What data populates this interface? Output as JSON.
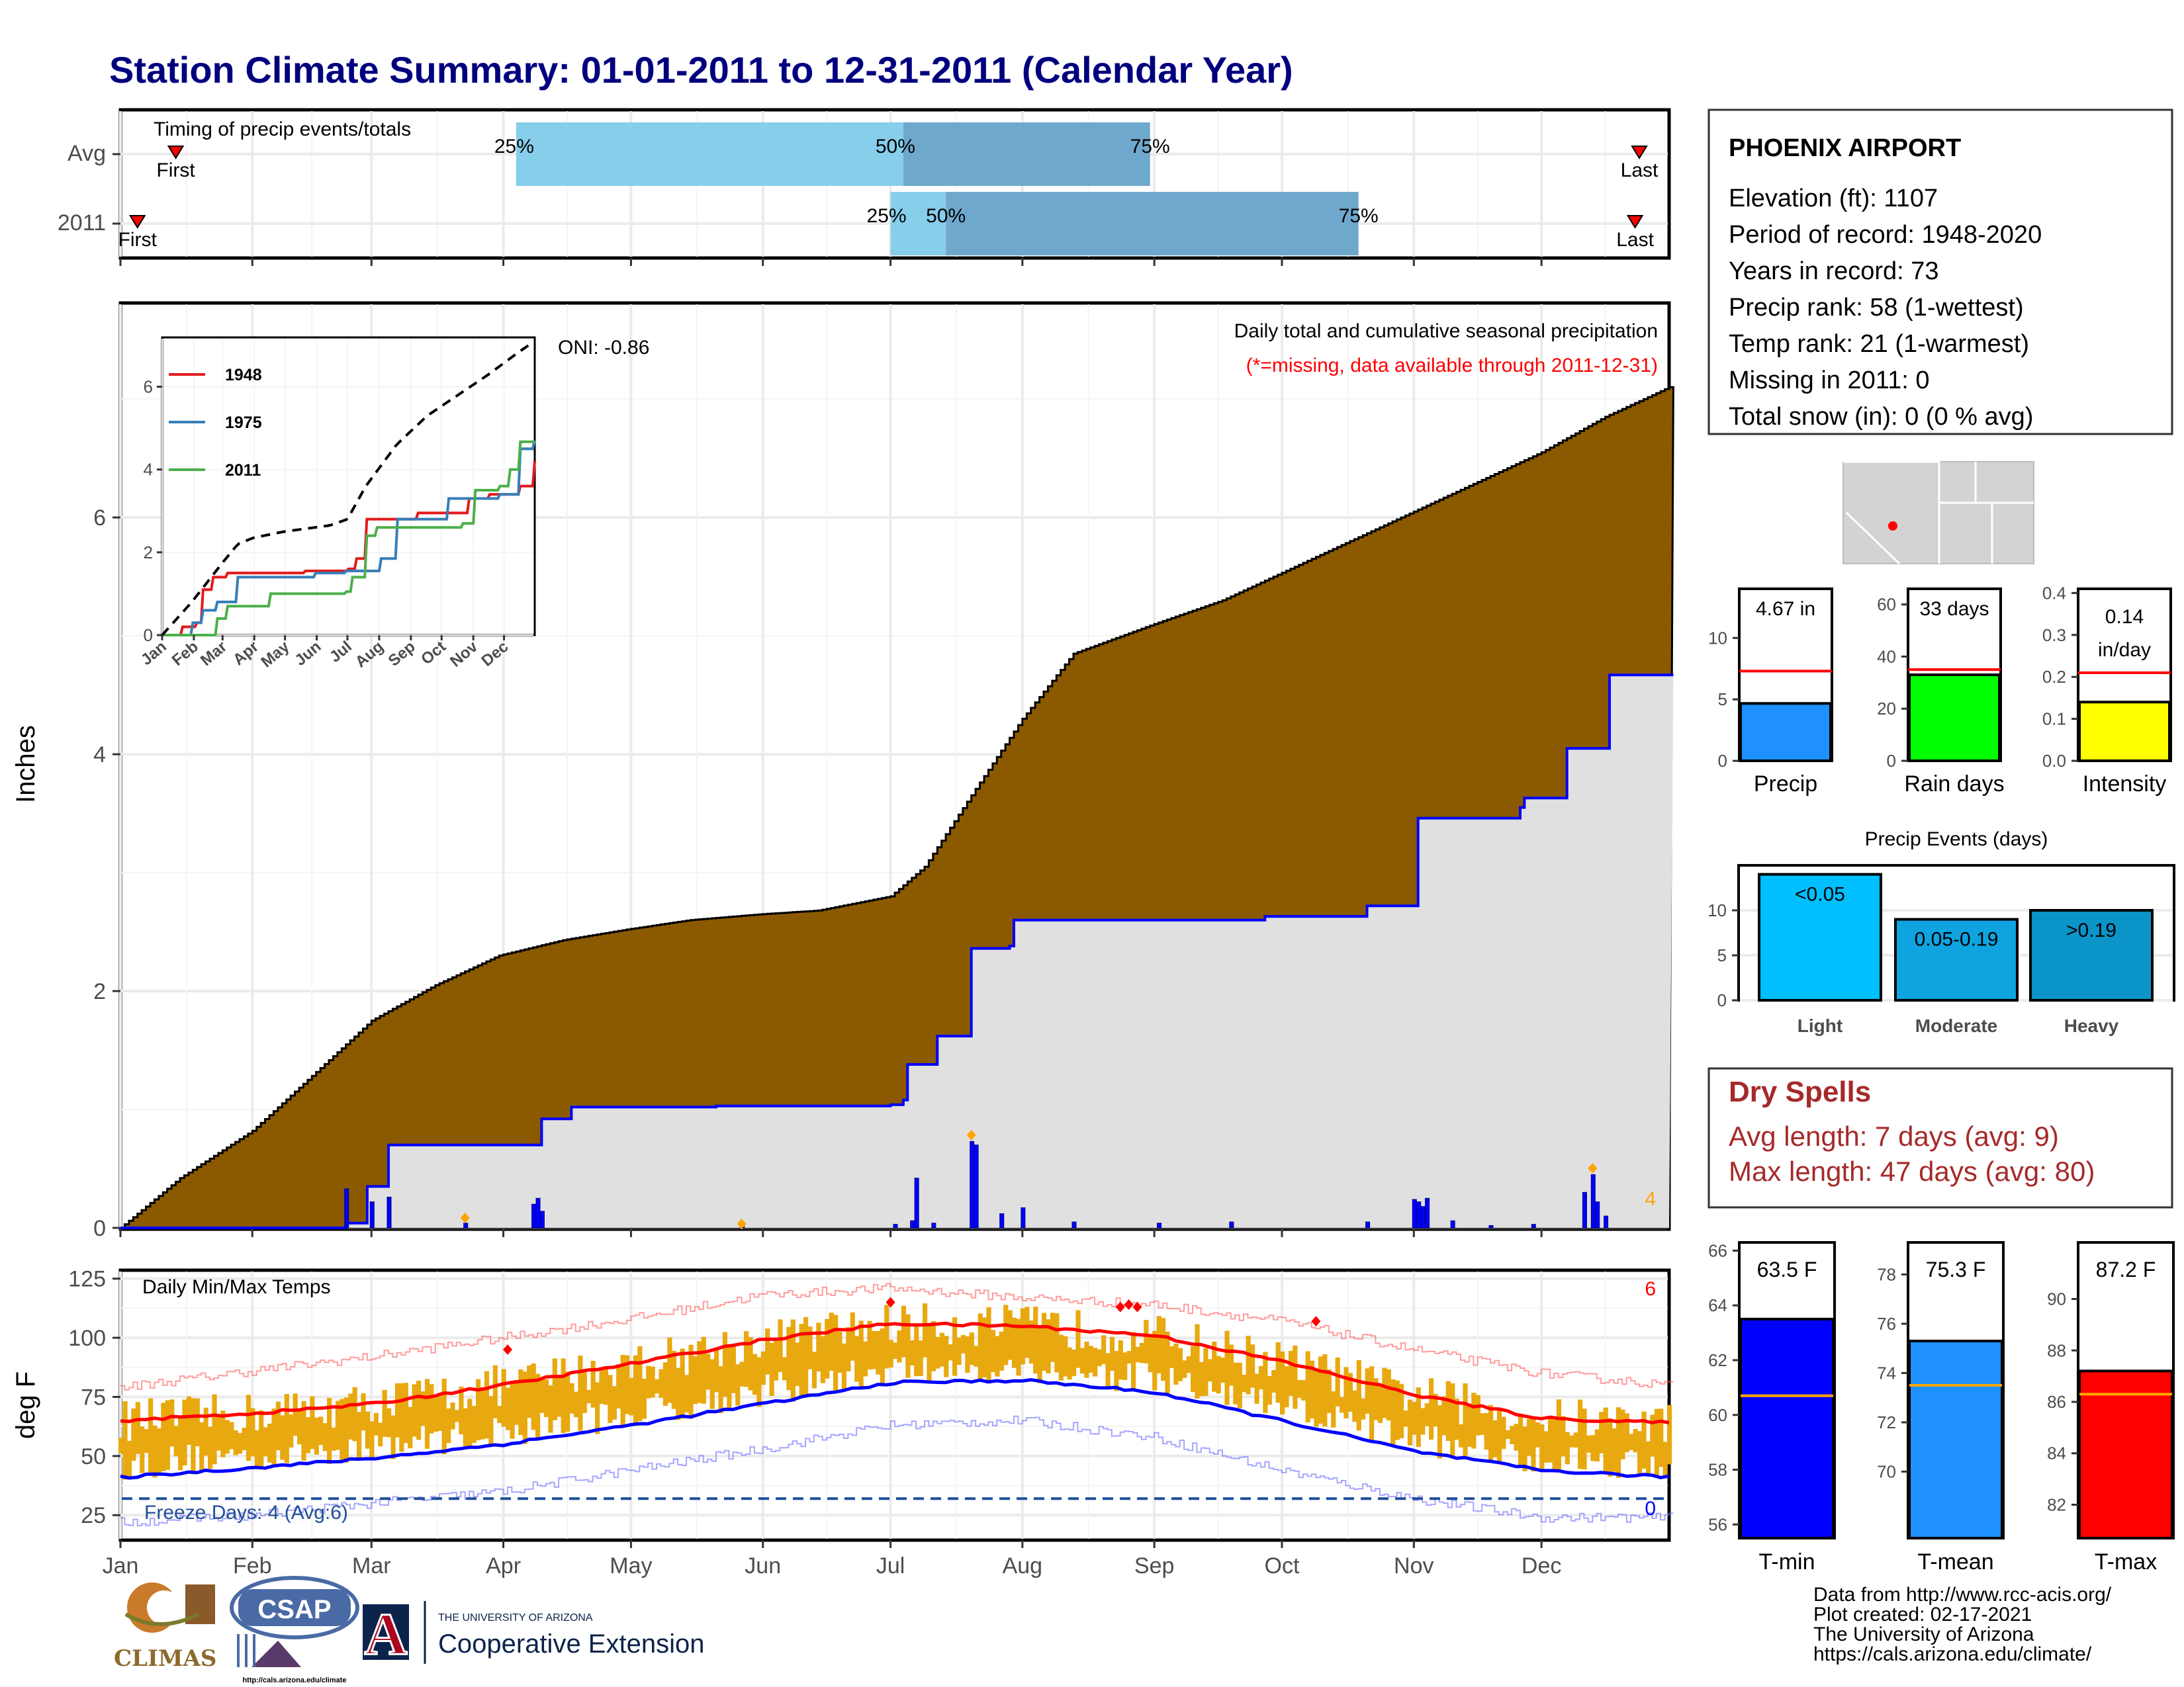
{
  "title": "Station Climate Summary: 01-01-2011 to 12-31-2011 (Calendar Year)",
  "colors": {
    "title": "#00007f",
    "cumulative_avg": "#8b5a00",
    "cumulative_2011": "#e0e0e0",
    "line_2011": "#0000ff",
    "daily_bar": "#0000ff",
    "temp_range": "#e8a80f",
    "avg_max": "#ff0000",
    "avg_min": "#0000ff",
    "dry_spells": "#a52a2a",
    "pct_light": "#87ceeb",
    "pct_mid": "#6fa8cd"
  },
  "timing_panel": {
    "heading": "Timing of precip events/totals",
    "rows": [
      "Avg",
      "2011"
    ],
    "avg": {
      "first_day": 14,
      "p25_day": 94,
      "p50_day": 185,
      "p75_day": 243,
      "last_day": 358
    },
    "y2011": {
      "first_day": 5,
      "p25_day": 182,
      "p50_day": 195,
      "p75_day": 292,
      "last_day": 357
    },
    "labels": {
      "first": "First",
      "last": "Last",
      "p25": "25%",
      "p50": "50%",
      "p75": "75%"
    }
  },
  "precip_panel": {
    "ylabel": "Inches",
    "title": "Daily total and cumulative seasonal precipitation",
    "subtitle": "(*=missing, data available through 2011-12-31)",
    "oni": "ONI: -0.86",
    "count_label": "4",
    "y_ticks": [
      "0",
      "2",
      "4",
      "6"
    ],
    "x_months": [
      "Jan",
      "Feb",
      "Mar",
      "Apr",
      "May",
      "Jun",
      "Jul",
      "Aug",
      "Sep",
      "Oct",
      "Nov",
      "Dec"
    ]
  },
  "inset": {
    "y_ticks": [
      "0",
      "2",
      "4",
      "6"
    ],
    "x_months": [
      "Jan",
      "Feb",
      "Mar",
      "Apr",
      "May",
      "Jun",
      "Jul",
      "Aug",
      "Sep",
      "Oct",
      "Nov",
      "Dec"
    ],
    "legend": [
      "1948",
      "1975",
      "2011"
    ],
    "legend_colors": [
      "#e41a1c",
      "#377eb8",
      "#4daf4a"
    ]
  },
  "temp_panel": {
    "ylabel": "deg F",
    "title": "Daily Min/Max Temps",
    "freeze_label": "Freeze Days: 4 (Avg:6)",
    "count_max": "6",
    "count_min": "0",
    "y_ticks": [
      "25",
      "50",
      "75",
      "100",
      "125"
    ]
  },
  "station": {
    "name": "PHOENIX AIRPORT",
    "lines": [
      "Elevation (ft): 1107",
      "Period of record: 1948-2020",
      "Years in record: 73",
      "Precip rank: 58 (1-wettest)",
      "Temp rank: 21 (1-warmest)",
      "Missing in 2011: 0",
      "Total snow (in): 0 (0 % avg)"
    ]
  },
  "mini_bars": [
    {
      "label": "Precip",
      "value_label": "4.67 in",
      "value": 4.67,
      "avg": 7.3,
      "ymax": 14,
      "ticks": [
        "0",
        "5",
        "10"
      ],
      "tick_vals": [
        0,
        5,
        10
      ],
      "color": "#1e90ff"
    },
    {
      "label": "Rain days",
      "value_label": "33 days",
      "value": 33,
      "avg": 35,
      "ymax": 66,
      "ticks": [
        "0",
        "20",
        "40",
        "60"
      ],
      "tick_vals": [
        0,
        20,
        40,
        60
      ],
      "color": "#00ff00"
    },
    {
      "label": "Intensity",
      "value_label": "0.14 in/day",
      "value_line1": "0.14",
      "value_line2": "in/day",
      "value": 0.14,
      "avg": 0.21,
      "ymax": 0.41,
      "ticks": [
        "0.0",
        "0.1",
        "0.2",
        "0.3",
        "0.4"
      ],
      "tick_vals": [
        0,
        0.1,
        0.2,
        0.3,
        0.4
      ],
      "color": "#ffff00"
    }
  ],
  "precip_events": {
    "title": "Precip Events (days)",
    "categories": [
      "Light",
      "Moderate",
      "Heavy"
    ],
    "bar_labels": [
      "<0.05",
      "0.05-0.19",
      ">0.19"
    ],
    "values": [
      14,
      9,
      10
    ],
    "colors": [
      "#00bfff",
      "#0fa3e0",
      "#0a94c8"
    ],
    "y_ticks": [
      "0",
      "5",
      "10"
    ],
    "tick_vals": [
      0,
      5,
      10
    ],
    "ymax": 15
  },
  "dry_spells": {
    "title": "Dry Spells",
    "avg_line": "Avg length: 7 days (avg: 9)",
    "max_line": "Max length: 47 days (avg: 80)"
  },
  "temp_bars": [
    {
      "label": "T-min",
      "value_label": "63.5 F",
      "value": 63.5,
      "avg": 60.7,
      "ymin": 55.5,
      "ymax": 66.3,
      "ticks": [
        "56",
        "58",
        "60",
        "62",
        "64",
        "66"
      ],
      "tick_vals": [
        56,
        58,
        60,
        62,
        64,
        66
      ],
      "color": "#0000ff"
    },
    {
      "label": "T-mean",
      "value_label": "75.3 F",
      "value": 75.3,
      "avg": 73.5,
      "ymin": 67.3,
      "ymax": 79.3,
      "ticks": [
        "70",
        "72",
        "74",
        "76",
        "78"
      ],
      "tick_vals": [
        70,
        72,
        74,
        76,
        78
      ],
      "color": "#1e90ff"
    },
    {
      "label": "T-max",
      "value_label": "87.2 F",
      "value": 87.2,
      "avg": 86.3,
      "ymin": 80.7,
      "ymax": 92.2,
      "ticks": [
        "82",
        "84",
        "86",
        "88",
        "90"
      ],
      "tick_vals": [
        82,
        84,
        86,
        88,
        90
      ],
      "color": "#ff0000"
    }
  ],
  "logos": {
    "climas": "CLIMAS",
    "csap": "CSAP",
    "csap_url": "http://cals.arizona.edu/climate",
    "ua_small": "THE UNIVERSITY OF ARIZONA",
    "ua_big": "Cooperative Extension",
    "ua_letter": "A"
  },
  "credits": [
    "Data from http://www.rcc-acis.org/",
    "Plot created: 02-17-2021",
    "The University of Arizona",
    "https://cals.arizona.edu/climate/"
  ],
  "chart_data": [
    {
      "type": "bar",
      "title": "Timing of precip events/totals",
      "categories": [
        "Avg",
        "2011"
      ],
      "series": [
        {
          "name": "First",
          "values": [
            14,
            5
          ]
        },
        {
          "name": "25%",
          "values": [
            94,
            182
          ]
        },
        {
          "name": "50%",
          "values": [
            185,
            195
          ]
        },
        {
          "name": "75%",
          "values": [
            243,
            292
          ]
        },
        {
          "name": "Last",
          "values": [
            358,
            357
          ]
        }
      ]
    },
    {
      "type": "area",
      "title": "Daily total and cumulative seasonal precipitation",
      "ylabel": "Inches",
      "ylim": [
        0,
        7.8
      ],
      "series": [
        {
          "name": "Average cumulative",
          "x": [
            1,
            15,
            32,
            45,
            60,
            75,
            90,
            105,
            120,
            135,
            152,
            165,
            182,
            190,
            200,
            213,
            225,
            244,
            260,
            275,
            290,
            305,
            320,
            335,
            350,
            365
          ],
          "y": [
            0,
            0.42,
            0.82,
            1.25,
            1.75,
            2.05,
            2.3,
            2.43,
            2.52,
            2.6,
            2.65,
            2.68,
            2.8,
            3.05,
            3.6,
            4.3,
            4.85,
            5.1,
            5.3,
            5.55,
            5.8,
            6.05,
            6.3,
            6.55,
            6.85,
            7.1
          ]
        },
        {
          "name": "2011 cumulative",
          "x": [
            1,
            33,
            54,
            59,
            64,
            90,
            100,
            107,
            109,
            141,
            182,
            185,
            186,
            192,
            193,
            200,
            201,
            210,
            211,
            250,
            260,
            270,
            280,
            294,
            305,
            306,
            330,
            331,
            340,
            341,
            350,
            351,
            365
          ],
          "y": [
            0,
            0,
            0.04,
            0.35,
            0.7,
            0.7,
            0.92,
            1.02,
            1.02,
            1.03,
            1.04,
            1.08,
            1.38,
            1.38,
            1.62,
            1.62,
            2.36,
            2.38,
            2.6,
            2.6,
            2.6,
            2.63,
            2.63,
            2.72,
            2.72,
            3.46,
            3.55,
            3.63,
            3.63,
            4.05,
            4.05,
            4.67,
            4.67
          ]
        },
        {
          "name": "Daily precip",
          "x": [
            54,
            60,
            64,
            82,
            98,
            99,
            100,
            147,
            183,
            187,
            188,
            192,
            201,
            202,
            208,
            213,
            225,
            245,
            262,
            294,
            305,
            306,
            307,
            308,
            314,
            323,
            333,
            345,
            347,
            348,
            350
          ],
          "y": [
            0.33,
            0.22,
            0.26,
            0.04,
            0.2,
            0.25,
            0.14,
            0.03,
            0.03,
            0.06,
            0.42,
            0.04,
            0.73,
            0.7,
            0.12,
            0.17,
            0.05,
            0.04,
            0.05,
            0.05,
            0.24,
            0.22,
            0.18,
            0.25,
            0.06,
            0.02,
            0.03,
            0.3,
            0.45,
            0.22,
            0.1
          ]
        }
      ]
    },
    {
      "type": "line",
      "title": "",
      "ylim": [
        0,
        7
      ],
      "series": [
        {
          "name": "1948",
          "x": [
            1,
            20,
            35,
            40,
            50,
            65,
            70,
            140,
            182,
            190,
            200,
            250,
            300,
            320,
            350,
            365
          ],
          "y": [
            0,
            0.2,
            0.3,
            1.1,
            1.4,
            1.5,
            1.5,
            1.55,
            1.6,
            1.85,
            2.8,
            2.95,
            3.3,
            3.4,
            3.6,
            4.2
          ]
        },
        {
          "name": "1975",
          "x": [
            1,
            30,
            40,
            55,
            75,
            150,
            180,
            200,
            215,
            230,
            270,
            280,
            330,
            350,
            365
          ],
          "y": [
            0,
            0.3,
            0.6,
            0.8,
            1.4,
            1.5,
            1.55,
            1.55,
            1.85,
            2.8,
            2.8,
            3.3,
            3.4,
            4.5,
            4.7
          ]
        },
        {
          "name": "2011",
          "x": [
            1,
            33,
            54,
            64,
            90,
            107,
            180,
            187,
            201,
            211,
            260,
            294,
            306,
            331,
            341,
            351,
            365
          ],
          "y": [
            0,
            0,
            0.4,
            0.7,
            0.7,
            1.0,
            1.05,
            1.4,
            2.4,
            2.6,
            2.6,
            2.7,
            3.5,
            3.6,
            4.0,
            4.67,
            4.67
          ]
        },
        {
          "name": "Average",
          "x": [
            1,
            30,
            60,
            75,
            90,
            120,
            150,
            165,
            182,
            200,
            230,
            260,
            290,
            320,
            350,
            365
          ],
          "y": [
            0,
            0.8,
            1.75,
            2.2,
            2.35,
            2.5,
            2.6,
            2.65,
            2.8,
            3.6,
            4.6,
            5.3,
            5.8,
            6.3,
            6.85,
            7.1
          ]
        }
      ]
    },
    {
      "type": "line",
      "title": "Daily Min/Max Temps",
      "ylabel": "deg F",
      "ylim": [
        15,
        128
      ],
      "series": [
        {
          "name": "Avg max",
          "x": [
            1,
            32,
            60,
            91,
            121,
            152,
            182,
            213,
            244,
            274,
            305,
            335,
            365
          ],
          "y": [
            65,
            68,
            72,
            80,
            89,
            99,
            106,
            105,
            101,
            90,
            76,
            66,
            64
          ]
        },
        {
          "name": "Avg min",
          "x": [
            1,
            32,
            60,
            91,
            121,
            152,
            182,
            213,
            244,
            274,
            305,
            335,
            365
          ],
          "y": [
            41,
            45,
            49,
            55,
            63,
            72,
            81,
            82,
            77,
            65,
            52,
            44,
            41
          ]
        },
        {
          "name": "Record max",
          "x": [
            1,
            32,
            60,
            91,
            121,
            152,
            182,
            213,
            244,
            274,
            305,
            335,
            365
          ],
          "y": [
            79,
            86,
            92,
            100,
            108,
            118,
            121,
            117,
            114,
            107,
            95,
            85,
            80
          ]
        },
        {
          "name": "Record min",
          "x": [
            1,
            32,
            60,
            91,
            121,
            152,
            182,
            213,
            244,
            274,
            305,
            335,
            365
          ],
          "y": [
            22,
            25,
            30,
            35,
            44,
            53,
            63,
            65,
            58,
            44,
            32,
            24,
            24
          ]
        }
      ]
    },
    {
      "type": "bar",
      "categories": [
        "Precip",
        "Rain days",
        "Intensity"
      ],
      "series": [
        {
          "name": "2011",
          "values": [
            4.67,
            33,
            0.14
          ]
        },
        {
          "name": "Average",
          "values": [
            7.3,
            35,
            0.21
          ]
        }
      ]
    },
    {
      "type": "bar",
      "title": "Precip Events (days)",
      "categories": [
        "Light",
        "Moderate",
        "Heavy"
      ],
      "values": [
        14,
        9,
        10
      ]
    },
    {
      "type": "bar",
      "categories": [
        "T-min",
        "T-mean",
        "T-max"
      ],
      "series": [
        {
          "name": "2011",
          "values": [
            63.5,
            75.3,
            87.2
          ]
        },
        {
          "name": "Average",
          "values": [
            60.7,
            73.5,
            86.3
          ]
        }
      ]
    }
  ]
}
